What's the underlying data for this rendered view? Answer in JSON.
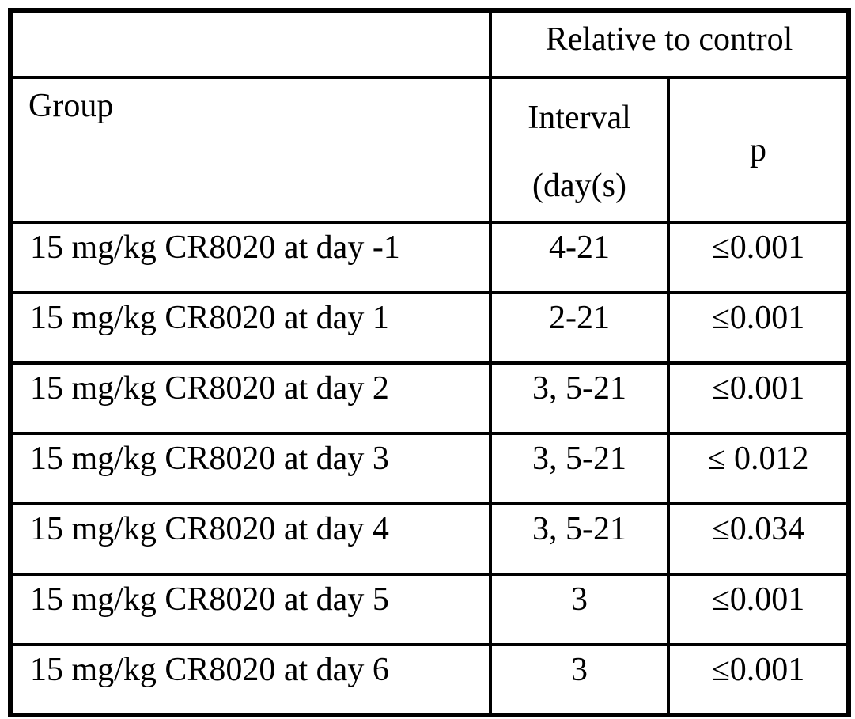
{
  "table": {
    "header": {
      "relative_to_control": "Relative to control",
      "group": "Group",
      "interval_line1": "Interval",
      "interval_line2": "(day(s)",
      "p": "p"
    },
    "rows": [
      {
        "group": "15 mg/kg CR8020 at day -1",
        "interval": "4-21",
        "p": "≤0.001"
      },
      {
        "group": "15 mg/kg CR8020 at day 1",
        "interval": "2-21",
        "p": "≤0.001"
      },
      {
        "group": "15 mg/kg CR8020 at day 2",
        "interval": "3, 5-21",
        "p": "≤0.001"
      },
      {
        "group": "15 mg/kg CR8020 at day 3",
        "interval": "3, 5-21",
        "p": "≤ 0.012"
      },
      {
        "group": "15 mg/kg CR8020 at day 4",
        "interval": "3, 5-21",
        "p": "≤0.034"
      },
      {
        "group": "15 mg/kg CR8020 at day 5",
        "interval": "3",
        "p": "≤0.001"
      },
      {
        "group": "15 mg/kg CR8020 at day 6",
        "interval": "3",
        "p": "≤0.001"
      }
    ],
    "colors": {
      "border": "#000000",
      "background": "#ffffff",
      "text": "#000000"
    }
  },
  "chart_data": {
    "type": "table",
    "span_header": "Relative to control",
    "columns": [
      "Group",
      "Interval (day(s)",
      "p"
    ],
    "rows": [
      [
        "15 mg/kg CR8020 at day -1",
        "4-21",
        "≤0.001"
      ],
      [
        "15 mg/kg CR8020 at day 1",
        "2-21",
        "≤0.001"
      ],
      [
        "15 mg/kg CR8020 at day 2",
        "3, 5-21",
        "≤0.001"
      ],
      [
        "15 mg/kg CR8020 at day 3",
        "3, 5-21",
        "≤ 0.012"
      ],
      [
        "15 mg/kg CR8020 at day 4",
        "3, 5-21",
        "≤0.034"
      ],
      [
        "15 mg/kg CR8020 at day 5",
        "3",
        "≤0.001"
      ],
      [
        "15 mg/kg CR8020 at day 6",
        "3",
        "≤0.001"
      ]
    ]
  }
}
